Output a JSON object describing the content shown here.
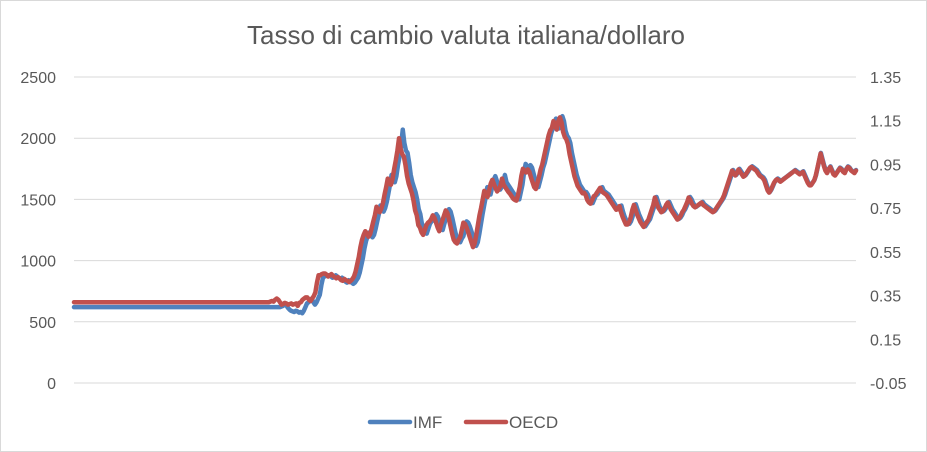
{
  "chart_data": {
    "type": "line",
    "title": "Tasso di cambio valuta italiana/dollaro",
    "xlabel": "",
    "ylabel": "",
    "grid": true,
    "legend_position": "bottom",
    "y_left": {
      "ylim": [
        0,
        2500
      ],
      "ticks": [
        0,
        500,
        1000,
        1500,
        2000,
        2500
      ],
      "tick_labels": [
        "0",
        "500",
        "1000",
        "1500",
        "2000",
        "2500"
      ]
    },
    "y_right": {
      "ylim": [
        -0.05,
        1.35
      ],
      "ticks": [
        -0.05,
        0.15,
        0.35,
        0.55,
        0.75,
        0.95,
        1.15,
        1.35
      ],
      "tick_labels": [
        "-0.05",
        "0.15",
        "0.35",
        "0.55",
        "0.75",
        "0.95",
        "1.15",
        "1.35"
      ]
    },
    "series": [
      {
        "name": "IMF",
        "axis": "left",
        "color": "#4f81bd",
        "values": [
          620,
          620,
          620,
          620,
          620,
          620,
          620,
          620,
          620,
          620,
          620,
          620,
          620,
          620,
          620,
          620,
          620,
          620,
          620,
          620,
          620,
          620,
          620,
          620,
          620,
          620,
          620,
          620,
          620,
          620,
          620,
          620,
          620,
          620,
          620,
          620,
          620,
          620,
          620,
          620,
          620,
          620,
          620,
          620,
          620,
          620,
          620,
          620,
          620,
          620,
          620,
          620,
          620,
          620,
          620,
          620,
          620,
          620,
          620,
          620,
          620,
          620,
          620,
          620,
          620,
          620,
          620,
          620,
          620,
          620,
          620,
          620,
          620,
          620,
          620,
          620,
          620,
          620,
          620,
          620,
          620,
          620,
          620,
          620,
          620,
          620,
          620,
          620,
          620,
          620,
          620,
          620,
          620,
          620,
          620,
          620,
          620,
          620,
          620,
          620,
          620,
          620,
          620,
          620,
          620,
          620,
          620,
          620,
          620,
          620,
          620,
          620,
          620,
          620,
          620,
          620,
          620,
          620,
          620,
          620,
          620,
          620,
          620,
          620,
          620,
          620,
          620,
          620,
          620,
          620,
          625,
          630,
          640,
          635,
          615,
          600,
          590,
          585,
          580,
          590,
          585,
          575,
          580,
          570,
          590,
          620,
          650,
          660,
          680,
          690,
          660,
          640,
          660,
          690,
          720,
          800,
          860,
          870,
          875,
          880,
          880,
          870,
          860,
          870,
          880,
          870,
          860,
          850,
          860,
          850,
          830,
          820,
          840,
          830,
          820,
          810,
          820,
          840,
          860,
          900,
          960,
          1020,
          1100,
          1160,
          1200,
          1230,
          1220,
          1190,
          1210,
          1260,
          1320,
          1380,
          1450,
          1420,
          1400,
          1430,
          1480,
          1550,
          1620,
          1700,
          1680,
          1640,
          1690,
          1780,
          1850,
          1950,
          2070,
          1960,
          1900,
          1880,
          1800,
          1700,
          1640,
          1600,
          1560,
          1500,
          1420,
          1380,
          1300,
          1280,
          1240,
          1220,
          1260,
          1300,
          1320,
          1330,
          1350,
          1380,
          1360,
          1320,
          1280,
          1250,
          1300,
          1340,
          1380,
          1420,
          1400,
          1350,
          1290,
          1230,
          1180,
          1160,
          1150,
          1180,
          1200,
          1260,
          1320,
          1310,
          1280,
          1240,
          1200,
          1160,
          1120,
          1150,
          1220,
          1300,
          1380,
          1450,
          1520,
          1600,
          1570,
          1540,
          1600,
          1660,
          1690,
          1650,
          1610,
          1580,
          1600,
          1630,
          1700,
          1640,
          1620,
          1600,
          1580,
          1560,
          1540,
          1520,
          1510,
          1500,
          1560,
          1620,
          1720,
          1790,
          1770,
          1750,
          1780,
          1760,
          1710,
          1660,
          1620,
          1600,
          1650,
          1700,
          1760,
          1800,
          1860,
          1920,
          1980,
          2040,
          2080,
          2100,
          2160,
          2120,
          2080,
          2150,
          2180,
          2140,
          2060,
          2020,
          2000,
          1960,
          1880,
          1820,
          1760,
          1700,
          1660,
          1620,
          1600,
          1580,
          1560,
          1560,
          1540,
          1500,
          1480,
          1470,
          1500,
          1530,
          1540,
          1560,
          1580,
          1600,
          1570,
          1560,
          1550,
          1540,
          1520,
          1500,
          1480,
          1460,
          1440,
          1420,
          1430,
          1450,
          1400,
          1360,
          1330,
          1300,
          1300,
          1320,
          1360,
          1420,
          1460,
          1420,
          1380,
          1350,
          1320,
          1300,
          1280,
          1300,
          1320,
          1340,
          1380,
          1420,
          1460,
          1520,
          1480,
          1440,
          1420,
          1400,
          1410,
          1430,
          1460,
          1480,
          1450,
          1420,
          1400,
          1380,
          1360,
          1340,
          1350,
          1370,
          1400,
          1420,
          1450,
          1480,
          1520,
          1500,
          1470,
          1450,
          1440,
          1450,
          1460,
          1470,
          1480,
          1460,
          1450,
          1440,
          1430,
          1420,
          1410,
          1400,
          1410,
          1430,
          1450,
          1470,
          1490,
          1510,
          1540,
          1580,
          1620,
          1660,
          1700,
          1740,
          1720,
          1700,
          1720,
          1750,
          1730,
          1710,
          1690,
          1700,
          1720,
          1740,
          1760,
          1770,
          1760,
          1750,
          1740,
          1720,
          1700,
          1690,
          1680,
          1660,
          1620,
          1580,
          1560,
          1580,
          1610,
          1640,
          1660,
          1670,
          1660,
          1650,
          1660,
          1670,
          1680,
          1690,
          1700,
          1710,
          1720,
          1730,
          1740,
          1730,
          1720,
          1710,
          1720,
          1730,
          1700,
          1670,
          1640,
          1620,
          1620,
          1640,
          1660,
          1700,
          1760,
          1820,
          1880,
          1830,
          1780,
          1740,
          1720,
          1750,
          1770,
          1740,
          1710,
          1700,
          1720,
          1740,
          1760,
          1750,
          1730,
          1720,
          1750,
          1770,
          1760,
          1740,
          1730,
          1720,
          1740
        ]
      },
      {
        "name": "OECD",
        "axis": "left",
        "color": "#c0504d",
        "values": [
          660,
          660,
          660,
          660,
          660,
          660,
          660,
          660,
          660,
          660,
          660,
          660,
          660,
          660,
          660,
          660,
          660,
          660,
          660,
          660,
          660,
          660,
          660,
          660,
          660,
          660,
          660,
          660,
          660,
          660,
          660,
          660,
          660,
          660,
          660,
          660,
          660,
          660,
          660,
          660,
          660,
          660,
          660,
          660,
          660,
          660,
          660,
          660,
          660,
          660,
          660,
          660,
          660,
          660,
          660,
          660,
          660,
          660,
          660,
          660,
          660,
          660,
          660,
          660,
          660,
          660,
          660,
          660,
          660,
          660,
          660,
          660,
          660,
          660,
          660,
          660,
          660,
          660,
          660,
          660,
          660,
          660,
          660,
          660,
          660,
          660,
          660,
          660,
          660,
          660,
          660,
          660,
          660,
          660,
          660,
          660,
          660,
          660,
          660,
          660,
          660,
          660,
          660,
          660,
          660,
          660,
          660,
          660,
          660,
          660,
          660,
          660,
          660,
          660,
          660,
          660,
          660,
          660,
          660,
          660,
          660,
          660,
          665,
          670,
          665,
          680,
          690,
          680,
          660,
          640,
          645,
          655,
          650,
          640,
          645,
          650,
          640,
          645,
          650,
          630,
          655,
          660,
          680,
          690,
          700,
          700,
          680,
          670,
          690,
          710,
          740,
          820,
          880,
          880,
          890,
          895,
          895,
          885,
          870,
          880,
          890,
          875,
          865,
          855,
          865,
          855,
          840,
          835,
          850,
          840,
          835,
          825,
          835,
          850,
          870,
          910,
          970,
          1030,
          1110,
          1170,
          1210,
          1240,
          1225,
          1195,
          1215,
          1265,
          1320,
          1370,
          1440,
          1410,
          1395,
          1425,
          1470,
          1540,
          1600,
          1670,
          1650,
          1620,
          1670,
          1750,
          1820,
          1900,
          2000,
          1910,
          1870,
          1850,
          1780,
          1690,
          1630,
          1590,
          1550,
          1490,
          1410,
          1370,
          1290,
          1270,
          1230,
          1210,
          1250,
          1290,
          1310,
          1320,
          1340,
          1370,
          1350,
          1310,
          1270,
          1240,
          1290,
          1330,
          1370,
          1410,
          1390,
          1340,
          1280,
          1220,
          1170,
          1150,
          1140,
          1170,
          1190,
          1250,
          1310,
          1300,
          1270,
          1230,
          1190,
          1150,
          1110,
          1140,
          1210,
          1290,
          1370,
          1430,
          1500,
          1570,
          1545,
          1520,
          1575,
          1630,
          1660,
          1625,
          1590,
          1565,
          1585,
          1610,
          1670,
          1620,
          1600,
          1580,
          1560,
          1545,
          1525,
          1505,
          1495,
          1490,
          1540,
          1600,
          1690,
          1750,
          1735,
          1720,
          1745,
          1725,
          1680,
          1640,
          1600,
          1585,
          1635,
          1685,
          1745,
          1785,
          1845,
          1905,
          1965,
          2025,
          2065,
          2085,
          2140,
          2105,
          2070,
          2140,
          2170,
          2130,
          2050,
          2010,
          1990,
          1950,
          1870,
          1810,
          1750,
          1690,
          1650,
          1610,
          1590,
          1570,
          1550,
          1555,
          1535,
          1495,
          1475,
          1465,
          1495,
          1525,
          1535,
          1555,
          1575,
          1595,
          1565,
          1555,
          1545,
          1535,
          1515,
          1495,
          1475,
          1455,
          1435,
          1415,
          1425,
          1445,
          1395,
          1355,
          1325,
          1295,
          1295,
          1315,
          1355,
          1415,
          1455,
          1415,
          1375,
          1345,
          1315,
          1295,
          1275,
          1295,
          1315,
          1335,
          1375,
          1415,
          1455,
          1515,
          1475,
          1435,
          1415,
          1395,
          1405,
          1425,
          1455,
          1475,
          1445,
          1415,
          1395,
          1375,
          1355,
          1335,
          1345,
          1365,
          1395,
          1415,
          1445,
          1475,
          1515,
          1495,
          1465,
          1445,
          1435,
          1445,
          1455,
          1465,
          1475,
          1455,
          1445,
          1435,
          1425,
          1415,
          1405,
          1395,
          1405,
          1425,
          1445,
          1465,
          1485,
          1505,
          1535,
          1575,
          1615,
          1655,
          1695,
          1735,
          1715,
          1695,
          1715,
          1745,
          1725,
          1705,
          1685,
          1695,
          1715,
          1735,
          1755,
          1765,
          1755,
          1745,
          1735,
          1715,
          1695,
          1685,
          1675,
          1655,
          1615,
          1575,
          1555,
          1575,
          1605,
          1635,
          1655,
          1665,
          1655,
          1645,
          1655,
          1665,
          1675,
          1685,
          1695,
          1705,
          1715,
          1725,
          1735,
          1725,
          1715,
          1705,
          1715,
          1725,
          1695,
          1665,
          1635,
          1615,
          1615,
          1635,
          1655,
          1695,
          1755,
          1815,
          1875,
          1825,
          1775,
          1735,
          1715,
          1745,
          1765,
          1735,
          1705,
          1695,
          1715,
          1735,
          1755,
          1745,
          1725,
          1715,
          1745,
          1765,
          1755,
          1735,
          1725,
          1715,
          1735
        ]
      }
    ]
  }
}
